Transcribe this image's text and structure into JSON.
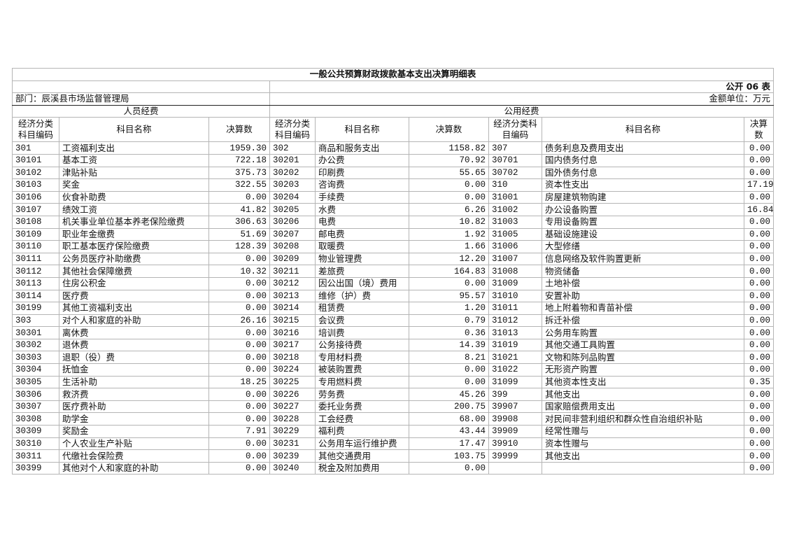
{
  "title": "一般公共预算财政拨款基本支出决算明细表",
  "table_no": "公开 06 表",
  "department": "部门：辰溪县市场监督管理局",
  "unit": "金额单位：万元",
  "sections": {
    "personnel": "人员经费",
    "public": "公用经费"
  },
  "headers": {
    "code": "经济分类科目编码",
    "name": "科目名称",
    "amount": "决算数"
  },
  "rows": [
    [
      [
        "301",
        "工资福利支出",
        "1959.30"
      ],
      [
        "302",
        "商品和服务支出",
        "1158.82"
      ],
      [
        "307",
        "债务利息及费用支出",
        "0.00"
      ]
    ],
    [
      [
        "30101",
        "基本工资",
        "722.18"
      ],
      [
        "30201",
        "办公费",
        "70.92"
      ],
      [
        "30701",
        "国内债务付息",
        "0.00"
      ]
    ],
    [
      [
        "30102",
        "津贴补贴",
        "375.73"
      ],
      [
        "30202",
        "印刷费",
        "55.65"
      ],
      [
        "30702",
        "国外债务付息",
        "0.00"
      ]
    ],
    [
      [
        "30103",
        "奖金",
        "322.55"
      ],
      [
        "30203",
        "咨询费",
        "0.00"
      ],
      [
        "310",
        "资本性支出",
        "17.19"
      ]
    ],
    [
      [
        "30106",
        "伙食补助费",
        "0.00"
      ],
      [
        "30204",
        "手续费",
        "0.00"
      ],
      [
        "31001",
        "房屋建筑物购建",
        "0.00"
      ]
    ],
    [
      [
        "30107",
        "绩效工资",
        "41.82"
      ],
      [
        "30205",
        "水费",
        "6.26"
      ],
      [
        "31002",
        "办公设备购置",
        "16.84"
      ]
    ],
    [
      [
        "30108",
        "机关事业单位基本养老保险缴费",
        "306.63"
      ],
      [
        "30206",
        "电费",
        "10.82"
      ],
      [
        "31003",
        "专用设备购置",
        "0.00"
      ]
    ],
    [
      [
        "30109",
        "职业年金缴费",
        "51.69"
      ],
      [
        "30207",
        "邮电费",
        "1.92"
      ],
      [
        "31005",
        "基础设施建设",
        "0.00"
      ]
    ],
    [
      [
        "30110",
        "职工基本医疗保险缴费",
        "128.39"
      ],
      [
        "30208",
        "取暖费",
        "1.66"
      ],
      [
        "31006",
        "大型修缮",
        "0.00"
      ]
    ],
    [
      [
        "30111",
        "公务员医疗补助缴费",
        "0.00"
      ],
      [
        "30209",
        "物业管理费",
        "12.20"
      ],
      [
        "31007",
        "信息网络及软件购置更新",
        "0.00"
      ]
    ],
    [
      [
        "30112",
        "其他社会保障缴费",
        "10.32"
      ],
      [
        "30211",
        "差旅费",
        "164.83"
      ],
      [
        "31008",
        "物资储备",
        "0.00"
      ]
    ],
    [
      [
        "30113",
        "住房公积金",
        "0.00"
      ],
      [
        "30212",
        "因公出国（境）费用",
        "0.00"
      ],
      [
        "31009",
        "土地补偿",
        "0.00"
      ]
    ],
    [
      [
        "30114",
        "医疗费",
        "0.00"
      ],
      [
        "30213",
        "维修（护）费",
        "95.57"
      ],
      [
        "31010",
        "安置补助",
        "0.00"
      ]
    ],
    [
      [
        "30199",
        "其他工资福利支出",
        "0.00"
      ],
      [
        "30214",
        "租赁费",
        "1.20"
      ],
      [
        "31011",
        "地上附着物和青苗补偿",
        "0.00"
      ]
    ],
    [
      [
        "303",
        "对个人和家庭的补助",
        "26.16"
      ],
      [
        "30215",
        "会议费",
        "0.79"
      ],
      [
        "31012",
        "拆迁补偿",
        "0.00"
      ]
    ],
    [
      [
        "30301",
        "离休费",
        "0.00"
      ],
      [
        "30216",
        "培训费",
        "0.36"
      ],
      [
        "31013",
        "公务用车购置",
        "0.00"
      ]
    ],
    [
      [
        "30302",
        "退休费",
        "0.00"
      ],
      [
        "30217",
        "公务接待费",
        "14.39"
      ],
      [
        "31019",
        "其他交通工具购置",
        "0.00"
      ]
    ],
    [
      [
        "30303",
        "退职（役）费",
        "0.00"
      ],
      [
        "30218",
        "专用材料费",
        "8.21"
      ],
      [
        "31021",
        "文物和陈列品购置",
        "0.00"
      ]
    ],
    [
      [
        "30304",
        "抚恤金",
        "0.00"
      ],
      [
        "30224",
        "被装购置费",
        "0.00"
      ],
      [
        "31022",
        "无形资产购置",
        "0.00"
      ]
    ],
    [
      [
        "30305",
        "生活补助",
        "18.25"
      ],
      [
        "30225",
        "专用燃料费",
        "0.00"
      ],
      [
        "31099",
        "其他资本性支出",
        "0.35"
      ]
    ],
    [
      [
        "30306",
        "救济费",
        "0.00"
      ],
      [
        "30226",
        "劳务费",
        "45.26"
      ],
      [
        "399",
        "其他支出",
        "0.00"
      ]
    ],
    [
      [
        "30307",
        "医疗费补助",
        "0.00"
      ],
      [
        "30227",
        "委托业务费",
        "200.75"
      ],
      [
        "39907",
        "国家赔偿费用支出",
        "0.00"
      ]
    ],
    [
      [
        "30308",
        "助学金",
        "0.00"
      ],
      [
        "30228",
        "工会经费",
        "68.00"
      ],
      [
        "39908",
        "对民间非营利组织和群众性自治组织补贴",
        "0.00"
      ]
    ],
    [
      [
        "30309",
        "奖励金",
        "7.91"
      ],
      [
        "30229",
        "福利费",
        "43.44"
      ],
      [
        "39909",
        "经常性赠与",
        "0.00"
      ]
    ],
    [
      [
        "30310",
        "个人农业生产补贴",
        "0.00"
      ],
      [
        "30231",
        "公务用车运行维护费",
        "17.47"
      ],
      [
        "39910",
        "资本性赠与",
        "0.00"
      ]
    ],
    [
      [
        "30311",
        "代缴社会保险费",
        "0.00"
      ],
      [
        "30239",
        "其他交通费用",
        "103.75"
      ],
      [
        "39999",
        "其他支出",
        "0.00"
      ]
    ],
    [
      [
        "30399",
        "其他对个人和家庭的补助",
        "0.00"
      ],
      [
        "30240",
        "税金及附加费用",
        "0.00"
      ],
      [
        "",
        "",
        "0.00"
      ]
    ]
  ]
}
